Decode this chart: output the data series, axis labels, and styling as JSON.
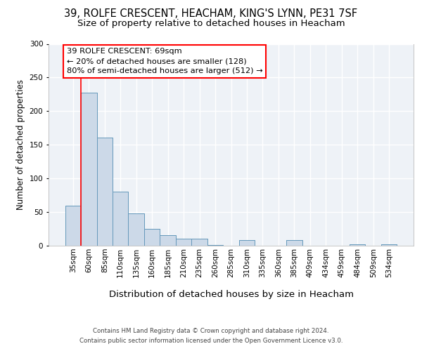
{
  "title_line1": "39, ROLFE CRESCENT, HEACHAM, KING'S LYNN, PE31 7SF",
  "title_line2": "Size of property relative to detached houses in Heacham",
  "xlabel": "Distribution of detached houses by size in Heacham",
  "ylabel": "Number of detached properties",
  "bar_categories": [
    "35sqm",
    "60sqm",
    "85sqm",
    "110sqm",
    "135sqm",
    "160sqm",
    "185sqm",
    "210sqm",
    "235sqm",
    "260sqm",
    "285sqm",
    "310sqm",
    "335sqm",
    "360sqm",
    "385sqm",
    "409sqm",
    "434sqm",
    "459sqm",
    "484sqm",
    "509sqm",
    "534sqm"
  ],
  "bar_values": [
    60,
    227,
    161,
    80,
    48,
    25,
    16,
    10,
    10,
    1,
    0,
    8,
    0,
    0,
    8,
    0,
    0,
    0,
    2,
    0,
    2
  ],
  "bar_color": "#ccd9e8",
  "bar_edge_color": "#6699bb",
  "ylim": [
    0,
    300
  ],
  "yticks": [
    0,
    50,
    100,
    150,
    200,
    250,
    300
  ],
  "annotation_text_line1": "39 ROLFE CRESCENT: 69sqm",
  "annotation_text_line2": "← 20% of detached houses are smaller (128)",
  "annotation_text_line3": "80% of semi-detached houses are larger (512) →",
  "footer_line1": "Contains HM Land Registry data © Crown copyright and database right 2024.",
  "footer_line2": "Contains public sector information licensed under the Open Government Licence v3.0.",
  "background_color": "#eef2f7",
  "grid_color": "#ffffff",
  "title_fontsize": 10.5,
  "subtitle_fontsize": 9.5,
  "tick_fontsize": 7.5,
  "ylabel_fontsize": 8.5,
  "xlabel_fontsize": 9.5,
  "footer_fontsize": 6.2,
  "annot_fontsize": 8.2
}
